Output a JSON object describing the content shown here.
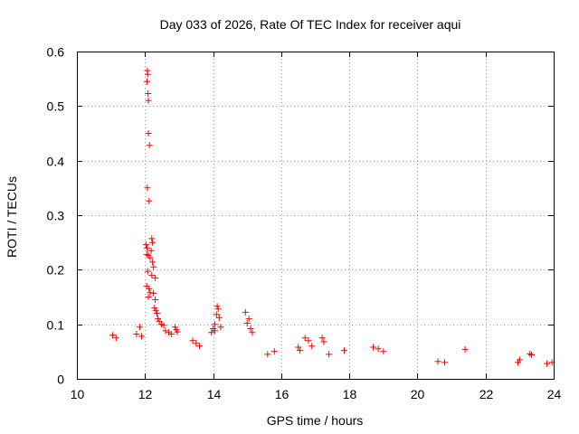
{
  "chart_data": {
    "type": "scatter",
    "title": "Day 033 of 2026, Rate Of TEC Index for receiver aqui",
    "xlabel": "GPS time / hours",
    "ylabel": "ROTI / TECUs",
    "xlim": [
      10,
      24
    ],
    "ylim": [
      0,
      0.6
    ],
    "xticks": [
      "10",
      "12",
      "14",
      "16",
      "18",
      "20",
      "22",
      "24"
    ],
    "yticks": [
      "0",
      "0.1",
      "0.2",
      "0.3",
      "0.4",
      "0.5",
      "0.6"
    ],
    "grid": true,
    "marker": "plus",
    "color": "#ff0000",
    "series": [
      {
        "points": [
          [
            12.07,
            0.565
          ],
          [
            12.08,
            0.558
          ],
          [
            12.06,
            0.545
          ],
          [
            12.09,
            0.523
          ],
          [
            12.1,
            0.51
          ],
          [
            12.1,
            0.45
          ],
          [
            12.13,
            0.428
          ],
          [
            12.07,
            0.35
          ],
          [
            12.12,
            0.326
          ],
          [
            12.2,
            0.257
          ],
          [
            12.22,
            0.25
          ],
          [
            12.03,
            0.246
          ],
          [
            12.06,
            0.24
          ],
          [
            12.18,
            0.235
          ],
          [
            12.05,
            0.228
          ],
          [
            12.1,
            0.226
          ],
          [
            12.15,
            0.222
          ],
          [
            12.22,
            0.214
          ],
          [
            12.25,
            0.205
          ],
          [
            12.08,
            0.197
          ],
          [
            12.2,
            0.19
          ],
          [
            12.3,
            0.185
          ],
          [
            12.05,
            0.17
          ],
          [
            12.12,
            0.165
          ],
          [
            12.15,
            0.158
          ],
          [
            12.25,
            0.157
          ],
          [
            12.1,
            0.15
          ],
          [
            12.3,
            0.145
          ],
          [
            12.28,
            0.13
          ],
          [
            12.32,
            0.125
          ],
          [
            12.35,
            0.12
          ],
          [
            12.38,
            0.11
          ],
          [
            12.42,
            0.105
          ],
          [
            12.48,
            0.1
          ],
          [
            12.55,
            0.098
          ],
          [
            12.6,
            0.088
          ],
          [
            12.7,
            0.085
          ],
          [
            12.78,
            0.082
          ],
          [
            12.88,
            0.095
          ],
          [
            12.92,
            0.09
          ],
          [
            12.95,
            0.086
          ],
          [
            14.12,
            0.133
          ],
          [
            14.15,
            0.128
          ],
          [
            14.1,
            0.118
          ],
          [
            14.18,
            0.112
          ],
          [
            14.05,
            0.1
          ],
          [
            14.22,
            0.095
          ],
          [
            14.0,
            0.092
          ],
          [
            14.05,
            0.088
          ],
          [
            13.95,
            0.085
          ],
          [
            14.95,
            0.122
          ],
          [
            15.05,
            0.11
          ],
          [
            15.0,
            0.102
          ],
          [
            15.1,
            0.092
          ],
          [
            15.15,
            0.085
          ],
          [
            11.85,
            0.095
          ],
          [
            11.75,
            0.082
          ],
          [
            11.9,
            0.078
          ],
          [
            11.05,
            0.08
          ],
          [
            11.15,
            0.075
          ],
          [
            13.4,
            0.07
          ],
          [
            13.5,
            0.065
          ],
          [
            13.6,
            0.06
          ],
          [
            16.7,
            0.075
          ],
          [
            16.8,
            0.07
          ],
          [
            16.9,
            0.06
          ],
          [
            17.2,
            0.075
          ],
          [
            17.25,
            0.068
          ],
          [
            17.4,
            0.045
          ],
          [
            17.85,
            0.052
          ],
          [
            18.7,
            0.058
          ],
          [
            18.85,
            0.055
          ],
          [
            19.0,
            0.05
          ],
          [
            16.5,
            0.058
          ],
          [
            16.55,
            0.052
          ],
          [
            15.8,
            0.05
          ],
          [
            15.6,
            0.045
          ],
          [
            21.4,
            0.054
          ],
          [
            23.3,
            0.046
          ],
          [
            23.35,
            0.044
          ],
          [
            23.0,
            0.035
          ],
          [
            22.95,
            0.03
          ],
          [
            20.6,
            0.032
          ],
          [
            20.8,
            0.03
          ],
          [
            23.8,
            0.028
          ],
          [
            23.95,
            0.03
          ]
        ]
      }
    ]
  }
}
